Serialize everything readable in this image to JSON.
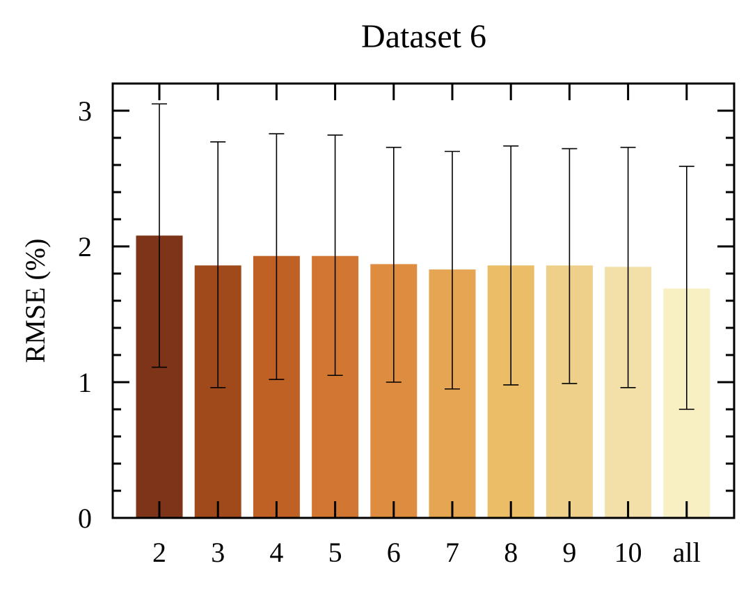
{
  "chart_data": {
    "type": "bar",
    "title": "Dataset 6",
    "xlabel": "",
    "ylabel": "RMSE (%)",
    "categories": [
      "2",
      "3",
      "4",
      "5",
      "6",
      "7",
      "8",
      "9",
      "10",
      "all"
    ],
    "values": [
      2.08,
      1.86,
      1.93,
      1.93,
      1.87,
      1.83,
      1.86,
      1.86,
      1.85,
      1.69
    ],
    "error_low": [
      1.11,
      0.96,
      1.02,
      1.05,
      1.0,
      0.95,
      0.98,
      0.99,
      0.96,
      0.8
    ],
    "error_high": [
      3.05,
      2.77,
      2.83,
      2.82,
      2.73,
      2.7,
      2.74,
      2.72,
      2.73,
      2.59
    ],
    "colors": [
      "#7d3418",
      "#a04a1c",
      "#bf6124",
      "#d27732",
      "#de8c40",
      "#e6a552",
      "#ebbd66",
      "#efd08a",
      "#f2e0a8",
      "#f8f0c2"
    ],
    "ylim": [
      0,
      3.2
    ],
    "yticks": [
      {
        "value": 0,
        "label": "0"
      },
      {
        "value": 1,
        "label": "1"
      },
      {
        "value": 2,
        "label": "2"
      },
      {
        "value": 3,
        "label": "3"
      }
    ],
    "minor_tick_step": 0.2,
    "grid": false,
    "legend": "none"
  }
}
